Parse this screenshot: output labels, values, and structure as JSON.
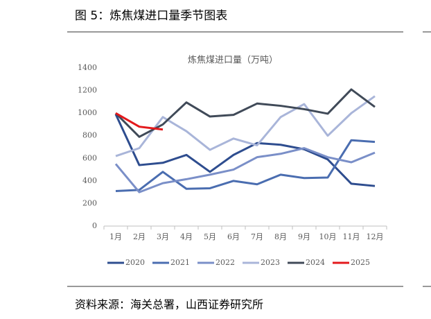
{
  "heading": "图 5：炼焦煤进口量季节图表",
  "source": "资料来源：海关总署，山西证券研究所",
  "chart_data": {
    "type": "line",
    "title": "炼焦煤进口量（万吨）",
    "categories": [
      "1月",
      "2月",
      "3月",
      "4月",
      "5月",
      "6月",
      "7月",
      "8月",
      "9月",
      "10月",
      "11月",
      "12月"
    ],
    "ylim": [
      0,
      1400
    ],
    "yticks": [
      0,
      200,
      400,
      600,
      800,
      1000,
      1200,
      1400
    ],
    "grid": false,
    "legend": "bottom",
    "series": [
      {
        "name": "2020",
        "color": "#2e4d8f",
        "values": [
          990,
          540,
          560,
          630,
          480,
          630,
          735,
          720,
          680,
          590,
          375,
          355
        ]
      },
      {
        "name": "2021",
        "color": "#4a6db0",
        "values": [
          310,
          320,
          480,
          330,
          335,
          400,
          370,
          455,
          425,
          430,
          760,
          745
        ]
      },
      {
        "name": "2022",
        "color": "#7a8fc8",
        "values": [
          550,
          300,
          380,
          415,
          455,
          500,
          610,
          640,
          690,
          610,
          565,
          650
        ]
      },
      {
        "name": "2023",
        "color": "#a9b5d9",
        "values": [
          620,
          690,
          965,
          840,
          675,
          775,
          715,
          965,
          1080,
          800,
          1000,
          1150
        ]
      },
      {
        "name": "2024",
        "color": "#404a58",
        "values": [
          1000,
          790,
          900,
          1095,
          970,
          985,
          1085,
          1065,
          1035,
          995,
          1210,
          1055
        ]
      },
      {
        "name": "2025",
        "color": "#e3191c",
        "values": [
          1000,
          880,
          855,
          null,
          null,
          null,
          null,
          null,
          null,
          null,
          null,
          null
        ]
      }
    ]
  }
}
